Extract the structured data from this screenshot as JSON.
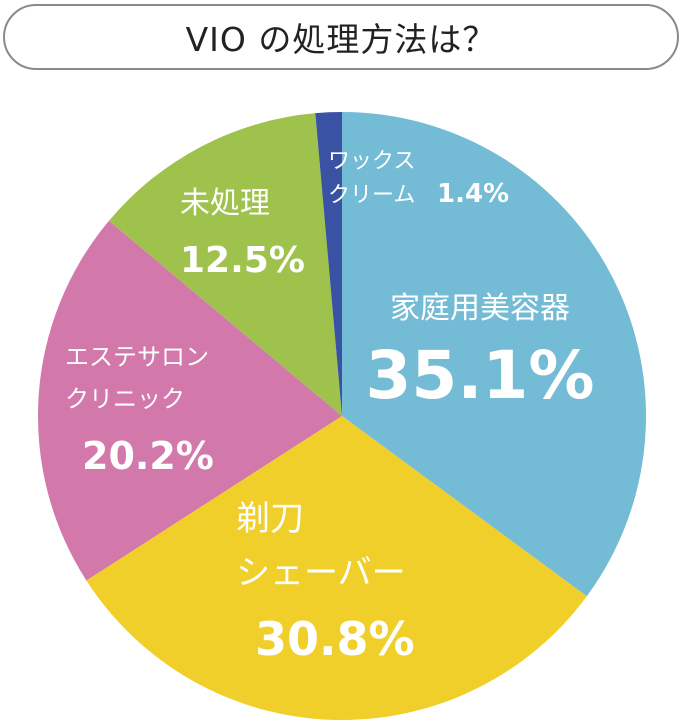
{
  "title": "VIO の処理方法は？",
  "chart_data": {
    "type": "pie",
    "title": "VIO の処理方法は？",
    "start": "12 o'clock, clockwise",
    "slices": [
      {
        "id": "home",
        "lines": [
          "家庭用美容器"
        ],
        "pct_label": "35.1%",
        "value": 35.1,
        "color": "#74bbd6"
      },
      {
        "id": "razor",
        "lines": [
          "剃刀",
          "シェーバー"
        ],
        "pct_label": "30.8%",
        "value": 30.8,
        "color": "#f1cf2a"
      },
      {
        "id": "salon",
        "lines": [
          "エステサロン",
          "クリニック"
        ],
        "pct_label": "20.2%",
        "value": 20.2,
        "color": "#d278aa"
      },
      {
        "id": "untreated",
        "lines": [
          "未処理"
        ],
        "pct_label": "12.5%",
        "value": 12.5,
        "color": "#9fc24d"
      },
      {
        "id": "wax",
        "lines": [
          "ワックス",
          "クリーム"
        ],
        "pct_label": "1.4%",
        "value": 1.4,
        "color": "#3a52a4"
      }
    ]
  }
}
